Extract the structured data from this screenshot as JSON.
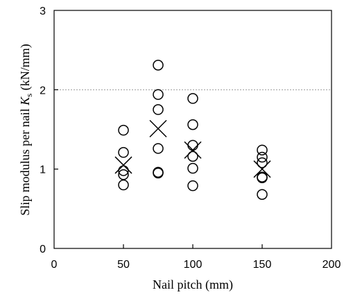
{
  "chart_data": {
    "type": "scatter",
    "xlabel": "Nail pitch (mm)",
    "ylabel_prefix": "Slip modulus per nail ",
    "ylabel_symbol": "K",
    "ylabel_subscript": "s",
    "ylabel_suffix": " (kN/mm)",
    "xlim": [
      0,
      200
    ],
    "ylim": [
      0,
      3
    ],
    "xticks": [
      0,
      50,
      100,
      150,
      200
    ],
    "yticks": [
      0,
      1,
      2,
      3
    ],
    "gridlines_y": [
      2
    ],
    "series": [
      {
        "marker": "circle",
        "points": [
          [
            50,
            1.49
          ],
          [
            50,
            1.21
          ],
          [
            50,
            0.98
          ],
          [
            50,
            0.93
          ],
          [
            50,
            0.8
          ],
          [
            75,
            2.31
          ],
          [
            75,
            1.94
          ],
          [
            75,
            1.75
          ],
          [
            75,
            1.26
          ],
          [
            75,
            0.96
          ],
          [
            75,
            0.95
          ],
          [
            100,
            1.89
          ],
          [
            100,
            1.56
          ],
          [
            100,
            1.3
          ],
          [
            100,
            1.16
          ],
          [
            100,
            1.01
          ],
          [
            100,
            0.79
          ],
          [
            150,
            1.24
          ],
          [
            150,
            1.15
          ],
          [
            150,
            1.08
          ],
          [
            150,
            0.9
          ],
          [
            150,
            0.89
          ],
          [
            150,
            0.68
          ]
        ]
      },
      {
        "marker": "x",
        "points": [
          [
            50,
            1.05
          ],
          [
            75,
            1.51
          ],
          [
            100,
            1.24
          ],
          [
            150,
            1.0
          ]
        ]
      }
    ]
  }
}
